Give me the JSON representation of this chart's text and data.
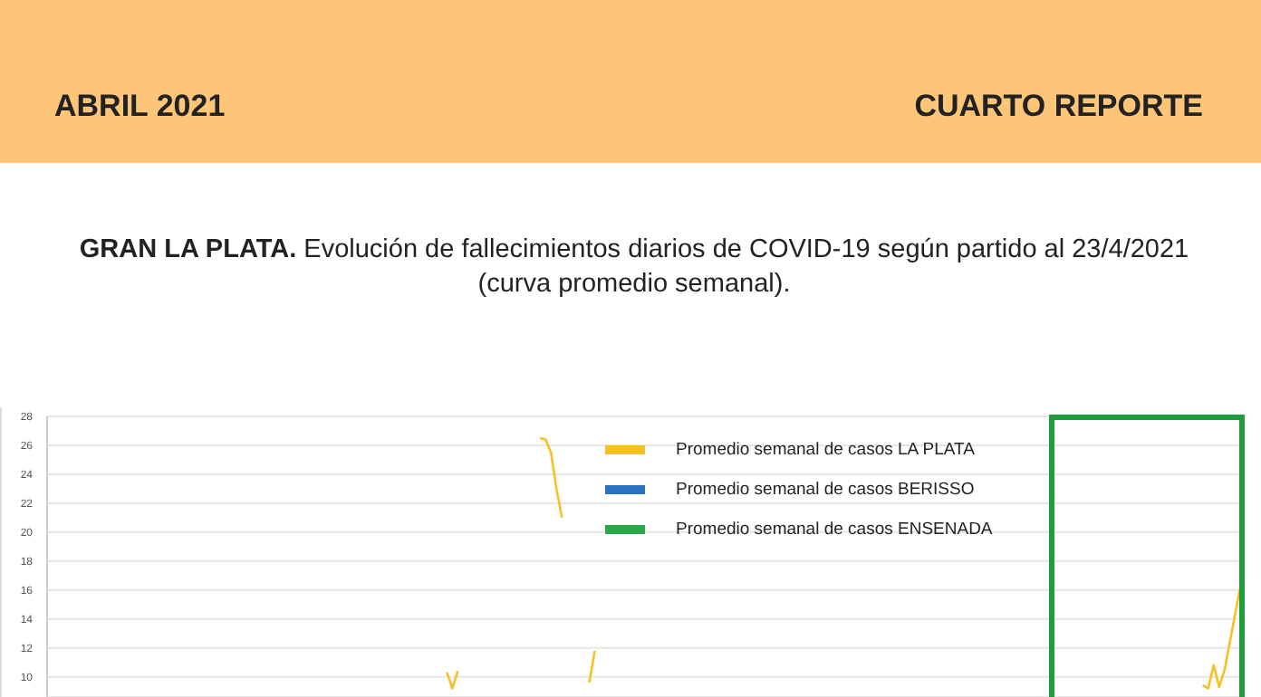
{
  "chart_data": {
    "type": "line",
    "title": "GRAN LA PLATA. Evolución de fallecimientos diarios de COVID-19 según partido al 23/4/2021 (curva promedio semanal).",
    "annotations": [
      "ABRIL 2021",
      "CUARTO REPORTE"
    ],
    "categories": [
      null,
      null,
      null,
      null,
      null,
      null,
      null,
      null,
      null,
      null,
      null,
      null,
      null,
      null,
      null,
      null,
      null,
      null,
      null,
      null,
      null,
      null,
      null,
      null,
      null,
      null,
      null,
      null,
      null,
      null,
      null,
      null,
      null,
      null,
      null,
      null,
      null,
      null,
      null,
      null,
      null,
      null,
      null,
      null,
      null,
      null,
      null,
      null,
      null,
      null,
      null,
      null,
      null,
      null,
      null,
      null,
      null,
      null,
      null,
      null,
      null,
      null,
      null,
      null,
      null,
      null,
      null,
      null,
      null,
      null,
      null,
      null,
      null,
      null,
      null,
      null,
      null,
      null,
      null,
      null,
      null,
      null,
      null,
      null,
      null,
      null,
      null,
      null,
      null,
      null,
      null,
      null,
      null,
      null,
      null,
      null,
      null,
      null,
      null,
      null,
      null,
      null,
      null,
      null,
      null,
      null,
      null,
      null,
      null,
      null,
      null,
      null,
      null,
      null,
      null,
      null,
      null,
      null,
      null,
      null,
      null,
      null,
      null,
      null,
      null,
      null,
      null,
      null,
      null,
      null,
      null,
      null,
      null,
      null,
      null,
      null,
      null,
      null,
      null,
      null,
      null,
      null,
      null,
      null,
      null,
      null,
      null,
      null,
      null,
      null,
      null,
      null,
      null,
      null,
      null,
      null,
      null,
      null,
      null,
      null,
      null,
      null,
      null,
      null,
      null,
      null,
      null,
      null,
      null,
      null,
      null,
      null,
      null,
      null,
      null,
      null,
      null,
      null,
      null,
      null,
      null,
      null,
      null,
      null,
      null,
      null,
      null,
      null,
      null,
      null,
      null,
      null,
      null,
      null,
      null,
      null,
      null,
      null,
      null,
      null,
      null,
      null,
      null,
      null,
      null,
      null,
      null,
      null,
      null,
      null,
      null,
      null,
      null,
      null,
      null,
      null,
      null,
      null,
      null
    ],
    "series": [
      {
        "name": "Promedio semanal de casos LA PLATA",
        "color": "#f5c026",
        "values": [
          null,
          null,
          null,
          null,
          null,
          null,
          null,
          null,
          null,
          null,
          null,
          null,
          null,
          null,
          null,
          null,
          null,
          null,
          null,
          null,
          null,
          null,
          null,
          null,
          null,
          null,
          null,
          null,
          null,
          null,
          null,
          null,
          null,
          null,
          null,
          null,
          null,
          null,
          null,
          null,
          null,
          null,
          null,
          null,
          null,
          null,
          null,
          null,
          null,
          null,
          null,
          null,
          null,
          null,
          null,
          null,
          null,
          null,
          null,
          null,
          null,
          null,
          null,
          null,
          null,
          null,
          null,
          null,
          null,
          null,
          null,
          null,
          null,
          10.3,
          9.2,
          10.4,
          null,
          null,
          null,
          null,
          null,
          null,
          null,
          null,
          null,
          null,
          null,
          null,
          null,
          null,
          26.5,
          26.4,
          25.5,
          23,
          21,
          null,
          null,
          null,
          null,
          9.6,
          11.8,
          null,
          null,
          null,
          null,
          null,
          null,
          null,
          null,
          null,
          null,
          null,
          null,
          null,
          null,
          null,
          null,
          null,
          null,
          null,
          null,
          null,
          null,
          null,
          null,
          null,
          null,
          null,
          null,
          null,
          null,
          null,
          null,
          null,
          null,
          null,
          null,
          null,
          null,
          null,
          null,
          null,
          null,
          null,
          null,
          null,
          null,
          null,
          null,
          null,
          null,
          null,
          null,
          null,
          null,
          null,
          null,
          null,
          null,
          null,
          null,
          null,
          null,
          null,
          null,
          null,
          null,
          null,
          null,
          null,
          null,
          null,
          null,
          null,
          null,
          null,
          null,
          null,
          null,
          null,
          null,
          null,
          null,
          null,
          null,
          null,
          null,
          null,
          null,
          null,
          null,
          null,
          null,
          null,
          null,
          null,
          null,
          null,
          null,
          null,
          null,
          null,
          null,
          null,
          null,
          null,
          null,
          null,
          null,
          null,
          null,
          9.4,
          9.2,
          10.8,
          9.3,
          10.5,
          12.5,
          14.5,
          16.5
        ]
      },
      {
        "name": "Promedio semanal de casos BERISSO",
        "color": "#2a73c0",
        "values": [
          null,
          null,
          null,
          null,
          null,
          null,
          null,
          null,
          null,
          null,
          null,
          null,
          null,
          null,
          null,
          null,
          null,
          null,
          null,
          null,
          null,
          null,
          null,
          null,
          null,
          null,
          null,
          null,
          null,
          null,
          null,
          null,
          null,
          null,
          null,
          null,
          null,
          null,
          null,
          null,
          null,
          null,
          null,
          null,
          null,
          null,
          null,
          null,
          null,
          null,
          null,
          null,
          null,
          null,
          null,
          null,
          null,
          null,
          null,
          null,
          null,
          null,
          null,
          null,
          null,
          null,
          null,
          null,
          null,
          null,
          null,
          null,
          null,
          null,
          null,
          null,
          null,
          null,
          null,
          null,
          null,
          null,
          null,
          null,
          null,
          null,
          null,
          null,
          null,
          null,
          null,
          null,
          null,
          null,
          null,
          null,
          null,
          null,
          null,
          null,
          null,
          null,
          null,
          null,
          null,
          null,
          null,
          null,
          null,
          null,
          null,
          null,
          null,
          null,
          null,
          null,
          null,
          null,
          null,
          null,
          null,
          null,
          null,
          null,
          null,
          null,
          null,
          null,
          null,
          null,
          null,
          null,
          null,
          null,
          null,
          null,
          null,
          null,
          null,
          null,
          null,
          null,
          null,
          null,
          null,
          null,
          null,
          null,
          null,
          null,
          null,
          null,
          null,
          null,
          null,
          null,
          null,
          null,
          null,
          null,
          null,
          null,
          null,
          null,
          null,
          null,
          null,
          null,
          null,
          null,
          null,
          null,
          null,
          null,
          null,
          null,
          null,
          null,
          null,
          null,
          null,
          null,
          null,
          null,
          null,
          null,
          null,
          null,
          null,
          null,
          null,
          null,
          null,
          null,
          null,
          null,
          null,
          null,
          null,
          null,
          null,
          null,
          null,
          null,
          null,
          null,
          null,
          null,
          null,
          null,
          null,
          null,
          null,
          null,
          null,
          null,
          null,
          null,
          null
        ]
      },
      {
        "name": "Promedio semanal de casos ENSENADA",
        "color": "#2aa84a",
        "values": [
          null,
          null,
          null,
          null,
          null,
          null,
          null,
          null,
          null,
          null,
          null,
          null,
          null,
          null,
          null,
          null,
          null,
          null,
          null,
          null,
          null,
          null,
          null,
          null,
          null,
          null,
          null,
          null,
          null,
          null,
          null,
          null,
          null,
          null,
          null,
          null,
          null,
          null,
          null,
          null,
          null,
          null,
          null,
          null,
          null,
          null,
          null,
          null,
          null,
          null,
          null,
          null,
          null,
          null,
          null,
          null,
          null,
          null,
          null,
          null,
          null,
          null,
          null,
          null,
          null,
          null,
          null,
          null,
          null,
          null,
          null,
          null,
          null,
          null,
          null,
          null,
          null,
          null,
          null,
          null,
          null,
          null,
          null,
          null,
          null,
          null,
          null,
          null,
          null,
          null,
          null,
          null,
          null,
          null,
          null,
          null,
          null,
          null,
          null,
          null,
          null,
          null,
          null,
          null,
          null,
          null,
          null,
          null,
          null,
          null,
          null,
          null,
          null,
          null,
          null,
          null,
          null,
          null,
          null,
          null,
          null,
          null,
          null,
          null,
          null,
          null,
          null,
          null,
          null,
          null,
          null,
          null,
          null,
          null,
          null,
          null,
          null,
          null,
          null,
          null,
          null,
          null,
          null,
          null,
          null,
          null,
          null,
          null,
          null,
          null,
          null,
          null,
          null,
          null,
          null,
          null,
          null,
          null,
          null,
          null,
          null,
          null,
          null,
          null,
          null,
          null,
          null,
          null,
          null,
          null,
          null,
          null,
          null,
          null,
          null,
          null,
          null,
          null,
          null,
          null,
          null,
          null,
          null,
          null,
          null,
          null,
          null,
          null,
          null,
          null,
          null,
          null,
          null,
          null,
          null,
          null,
          null,
          null,
          null,
          null,
          null,
          null,
          null,
          null,
          null,
          null,
          null,
          null,
          null,
          null,
          null,
          null,
          null,
          null,
          null,
          null,
          null,
          null,
          null
        ]
      }
    ],
    "ylim": [
      8.6,
      28
    ],
    "yticks": [
      10,
      12,
      14,
      16,
      18,
      20,
      22,
      24,
      26,
      28
    ],
    "grid": "y",
    "legend": "top",
    "tick_labels": "y"
  }
}
